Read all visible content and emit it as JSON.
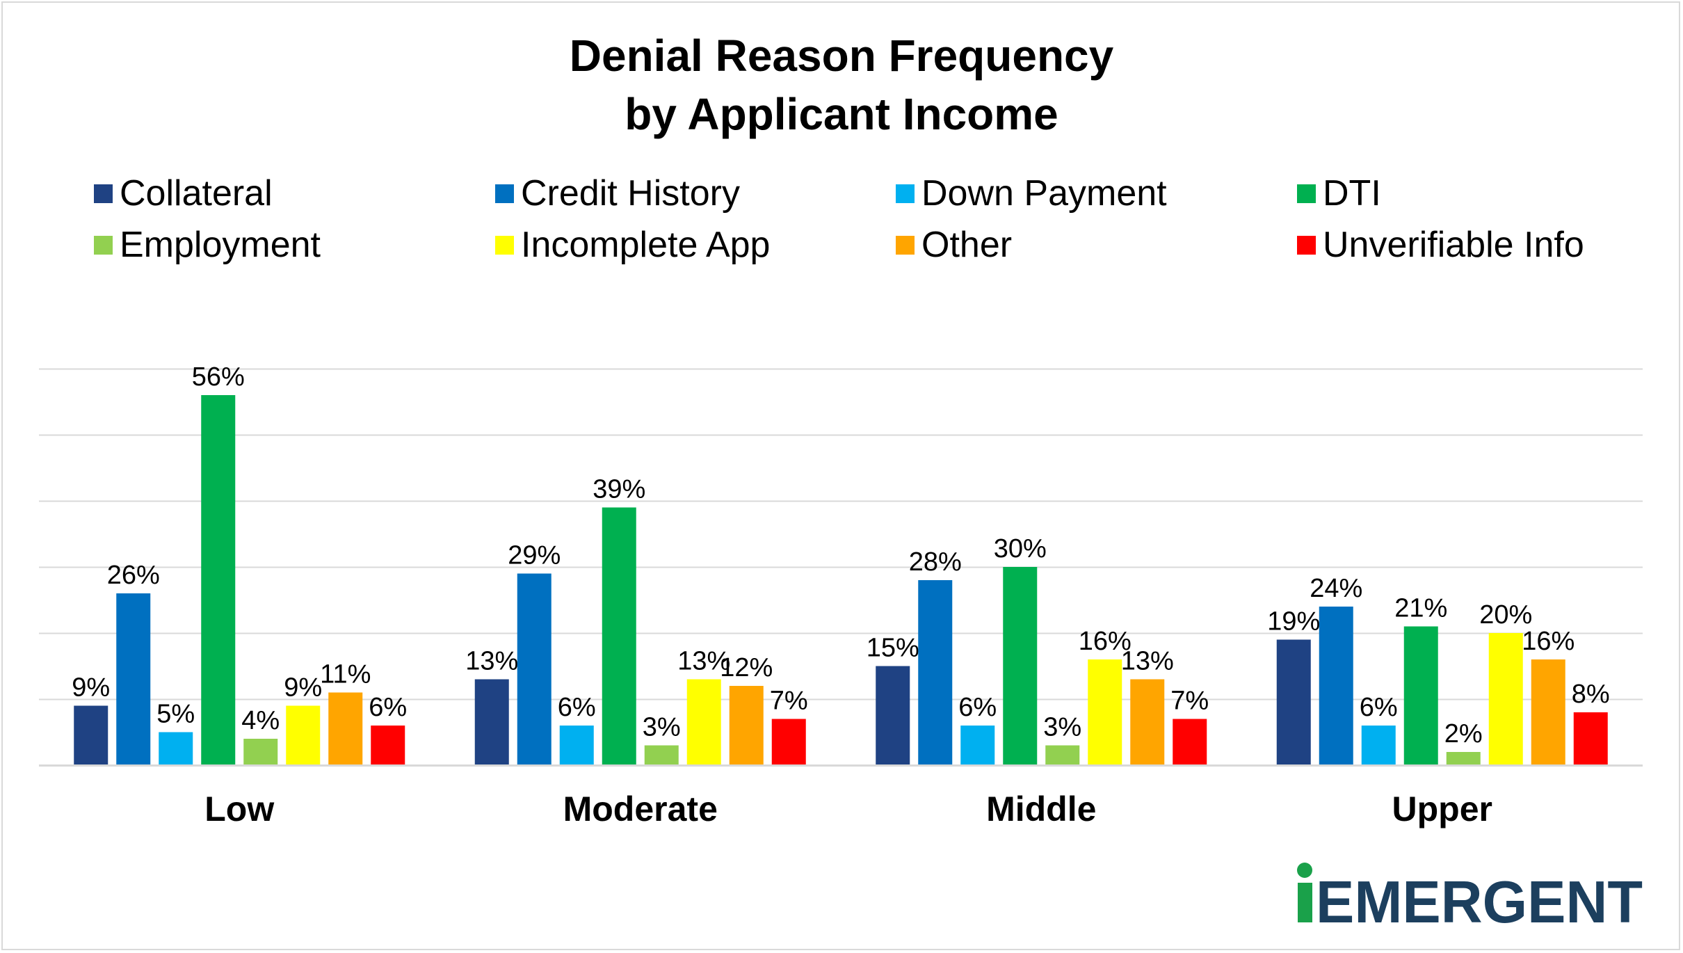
{
  "chart_data": {
    "type": "bar",
    "title": [
      "Denial Reason Frequency",
      "by Applicant Income"
    ],
    "xlabel": "",
    "ylabel": "",
    "ylim": [
      0,
      0.6
    ],
    "grid": true,
    "legend_position": "top",
    "categories": [
      "Low",
      "Moderate",
      "Middle",
      "Upper"
    ],
    "series": [
      {
        "name": "Collateral",
        "color": "#1f4283",
        "values": [
          0.09,
          0.13,
          0.15,
          0.19
        ],
        "labels": [
          "9%",
          "13%",
          "15%",
          "19%"
        ]
      },
      {
        "name": "Credit History",
        "color": "#0070c0",
        "values": [
          0.26,
          0.29,
          0.28,
          0.24
        ],
        "labels": [
          "26%",
          "29%",
          "28%",
          "24%"
        ]
      },
      {
        "name": "Down Payment",
        "color": "#00b0f0",
        "values": [
          0.05,
          0.06,
          0.06,
          0.06
        ],
        "labels": [
          "5%",
          "6%",
          "6%",
          "6%"
        ]
      },
      {
        "name": "DTI",
        "color": "#00b050",
        "values": [
          0.56,
          0.39,
          0.3,
          0.21
        ],
        "labels": [
          "56%",
          "39%",
          "30%",
          "21%"
        ]
      },
      {
        "name": "Employment",
        "color": "#92d050",
        "values": [
          0.04,
          0.03,
          0.03,
          0.02
        ],
        "labels": [
          "4%",
          "3%",
          "3%",
          "2%"
        ]
      },
      {
        "name": "Incomplete App",
        "color": "#ffff00",
        "values": [
          0.09,
          0.13,
          0.16,
          0.2
        ],
        "labels": [
          "9%",
          "13%",
          "16%",
          "20%"
        ]
      },
      {
        "name": "Other",
        "color": "#ffa500",
        "values": [
          0.11,
          0.12,
          0.13,
          0.16
        ],
        "labels": [
          "11%",
          "12%",
          "13%",
          "16%"
        ]
      },
      {
        "name": "Unverifiable Info",
        "color": "#ff0000",
        "values": [
          0.06,
          0.07,
          0.07,
          0.08
        ],
        "labels": [
          "6%",
          "7%",
          "7%",
          "8%"
        ]
      }
    ]
  },
  "logo": {
    "text": "EMERGENT",
    "green": "#1aa14a",
    "navy": "#1c3f5e"
  }
}
